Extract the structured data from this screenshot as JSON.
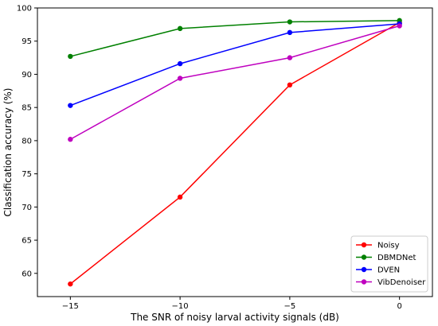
{
  "chart_data": {
    "type": "line",
    "xlabel": "The SNR of noisy larval activity signals (dB)",
    "ylabel": "Classification accuracy (%)",
    "x": [
      -15,
      -10,
      -5,
      0
    ],
    "xticks": [
      -15,
      -10,
      -5,
      0
    ],
    "xlim": [
      -16.5,
      1.5
    ],
    "yticks": [
      60,
      65,
      70,
      75,
      80,
      85,
      90,
      95,
      100
    ],
    "ylim": [
      56.5,
      100
    ],
    "grid": false,
    "legend_position": "bottom-right",
    "series": [
      {
        "name": "Noisy",
        "color": "#ff0000",
        "values": [
          58.4,
          71.5,
          88.4,
          97.8
        ]
      },
      {
        "name": "DBMDNet",
        "color": "#008000",
        "values": [
          92.7,
          96.9,
          97.9,
          98.1
        ]
      },
      {
        "name": "DVEN",
        "color": "#0000ff",
        "values": [
          85.3,
          91.6,
          96.3,
          97.6
        ]
      },
      {
        "name": "VibDenoiser",
        "color": "#bf00bf",
        "values": [
          80.2,
          89.4,
          92.5,
          97.3
        ]
      }
    ]
  }
}
